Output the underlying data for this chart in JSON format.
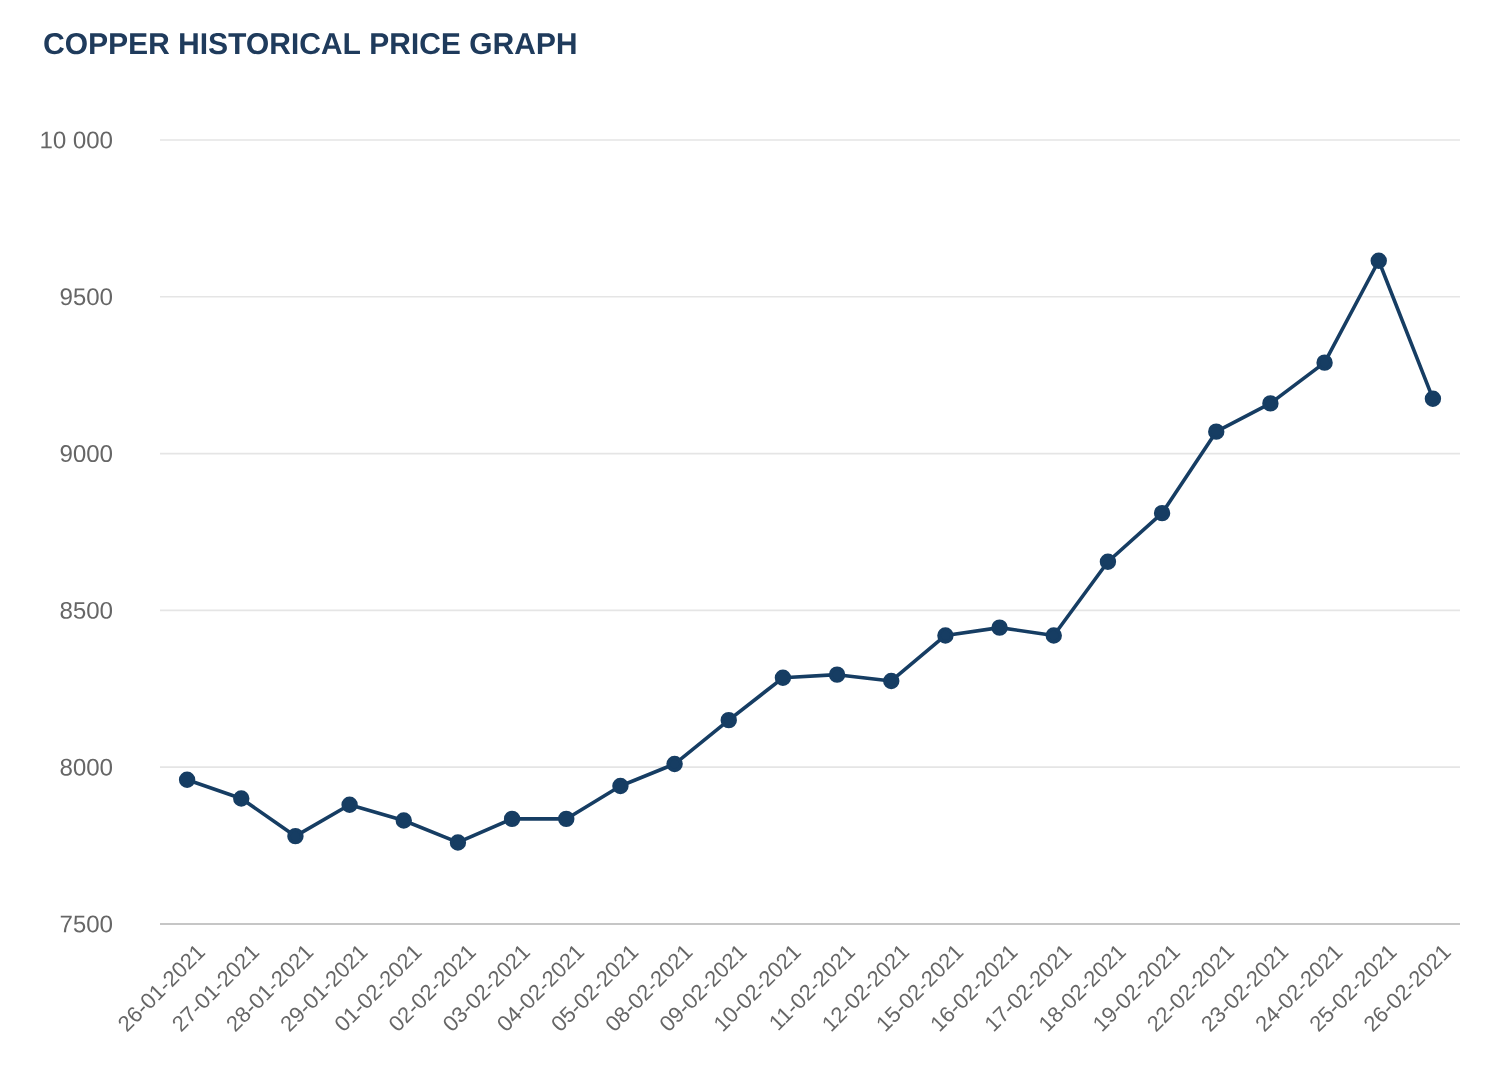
{
  "chart_data": {
    "type": "line",
    "title": "COPPER HISTORICAL PRICE GRAPH",
    "categories": [
      "26-01-2021",
      "27-01-2021",
      "28-01-2021",
      "29-01-2021",
      "01-02-2021",
      "02-02-2021",
      "03-02-2021",
      "04-02-2021",
      "05-02-2021",
      "08-02-2021",
      "09-02-2021",
      "10-02-2021",
      "11-02-2021",
      "12-02-2021",
      "15-02-2021",
      "16-02-2021",
      "17-02-2021",
      "18-02-2021",
      "19-02-2021",
      "22-02-2021",
      "23-02-2021",
      "24-02-2021",
      "25-02-2021",
      "26-02-2021"
    ],
    "series": [
      {
        "color": "#163d63",
        "values": [
          7960,
          7900,
          7780,
          7880,
          7830,
          7760,
          7835,
          7835,
          7940,
          8010,
          8150,
          8285,
          8295,
          8275,
          8420,
          8445,
          8420,
          8655,
          8810,
          9070,
          9160,
          9290,
          9615,
          9175
        ]
      }
    ],
    "ylim": [
      7500,
      10000
    ],
    "yticks": [
      7500,
      8000,
      8500,
      9000,
      9500,
      {
        "value": 10000,
        "label": "10 000"
      }
    ],
    "grid": "y",
    "marker": "circle",
    "line_style": "solid"
  }
}
